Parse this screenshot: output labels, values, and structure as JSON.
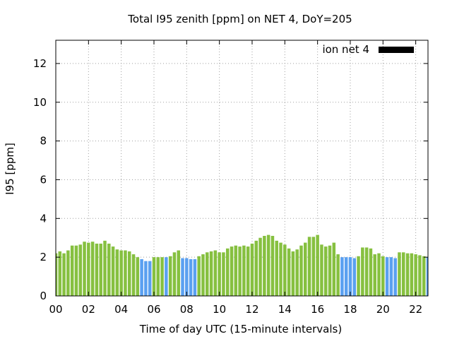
{
  "chart_data": {
    "type": "bar",
    "title": "Total I95 zenith [ppm] on NET 4, DoY=205",
    "xlabel": "Time of day UTC (15-minute intervals)",
    "ylabel": "I95 [ppm]",
    "x_tick_labels": [
      "00",
      "02",
      "04",
      "06",
      "08",
      "10",
      "12",
      "14",
      "16",
      "18",
      "20",
      "22"
    ],
    "y_tick_labels": [
      "0",
      "2",
      "4",
      "6",
      "8",
      "10",
      "12"
    ],
    "xlim": [
      0,
      22.75
    ],
    "ylim": [
      0,
      13.2
    ],
    "grid": true,
    "legend": {
      "position": "top-right",
      "entries": [
        {
          "label": "ion net 4",
          "color": "#000000"
        }
      ]
    },
    "bar_colors": {
      "normal": "#86c040",
      "flagged": "#5aa0f0"
    },
    "series": [
      {
        "x": [
          0.0,
          0.25,
          0.5,
          0.75,
          1.0,
          1.25,
          1.5,
          1.75,
          2.0,
          2.25,
          2.5,
          2.75,
          3.0,
          3.25,
          3.5,
          3.75,
          4.0,
          4.25,
          4.5,
          4.75,
          5.0,
          5.25,
          5.5,
          5.75,
          6.0,
          6.25,
          6.5,
          6.75,
          7.0,
          7.25,
          7.5,
          7.75,
          8.0,
          8.25,
          8.5,
          8.75,
          9.0,
          9.25,
          9.5,
          9.75,
          10.0,
          10.25,
          10.5,
          10.75,
          11.0,
          11.25,
          11.5,
          11.75,
          12.0,
          12.25,
          12.5,
          12.75,
          13.0,
          13.25,
          13.5,
          13.75,
          14.0,
          14.25,
          14.5,
          14.75,
          15.0,
          15.25,
          15.5,
          15.75,
          16.0,
          16.25,
          16.5,
          16.75,
          17.0,
          17.25,
          17.5,
          17.75,
          18.0,
          18.25,
          18.5,
          18.75,
          19.0,
          19.25,
          19.5,
          19.75,
          20.0,
          20.25,
          20.5,
          20.75,
          21.0,
          21.25,
          21.5,
          21.75,
          22.0,
          22.25,
          22.5,
          22.75
        ],
        "values": [
          2.2,
          2.3,
          2.2,
          2.35,
          2.6,
          2.6,
          2.65,
          2.8,
          2.75,
          2.8,
          2.7,
          2.7,
          2.85,
          2.7,
          2.55,
          2.4,
          2.35,
          2.35,
          2.3,
          2.15,
          2.0,
          1.9,
          1.8,
          1.8,
          2.0,
          2.0,
          2.0,
          2.0,
          2.05,
          2.25,
          2.35,
          1.95,
          1.95,
          1.9,
          1.9,
          2.05,
          2.15,
          2.25,
          2.3,
          2.35,
          2.25,
          2.25,
          2.45,
          2.55,
          2.6,
          2.55,
          2.6,
          2.55,
          2.7,
          2.85,
          3.0,
          3.1,
          3.15,
          3.1,
          2.85,
          2.75,
          2.65,
          2.45,
          2.3,
          2.4,
          2.6,
          2.75,
          3.05,
          3.05,
          3.15,
          2.65,
          2.55,
          2.6,
          2.75,
          2.15,
          2.0,
          2.0,
          2.0,
          1.95,
          2.05,
          2.5,
          2.5,
          2.45,
          2.15,
          2.2,
          2.05,
          2.0,
          2.0,
          1.95,
          2.25,
          2.25,
          2.2,
          2.2,
          2.15,
          2.1,
          2.05,
          2.0
        ],
        "flagged": [
          0,
          0,
          0,
          0,
          0,
          0,
          0,
          0,
          0,
          0,
          0,
          0,
          0,
          0,
          0,
          0,
          0,
          0,
          0,
          0,
          0,
          1,
          1,
          1,
          0,
          0,
          0,
          1,
          0,
          0,
          0,
          1,
          1,
          1,
          1,
          0,
          0,
          0,
          0,
          0,
          0,
          0,
          0,
          0,
          0,
          0,
          0,
          0,
          0,
          0,
          0,
          0,
          0,
          0,
          0,
          0,
          0,
          0,
          0,
          0,
          0,
          0,
          0,
          0,
          0,
          0,
          0,
          0,
          0,
          0,
          1,
          1,
          1,
          1,
          0,
          0,
          0,
          0,
          0,
          0,
          0,
          1,
          1,
          1,
          0,
          0,
          0,
          0,
          0,
          0,
          0,
          1
        ]
      }
    ]
  }
}
